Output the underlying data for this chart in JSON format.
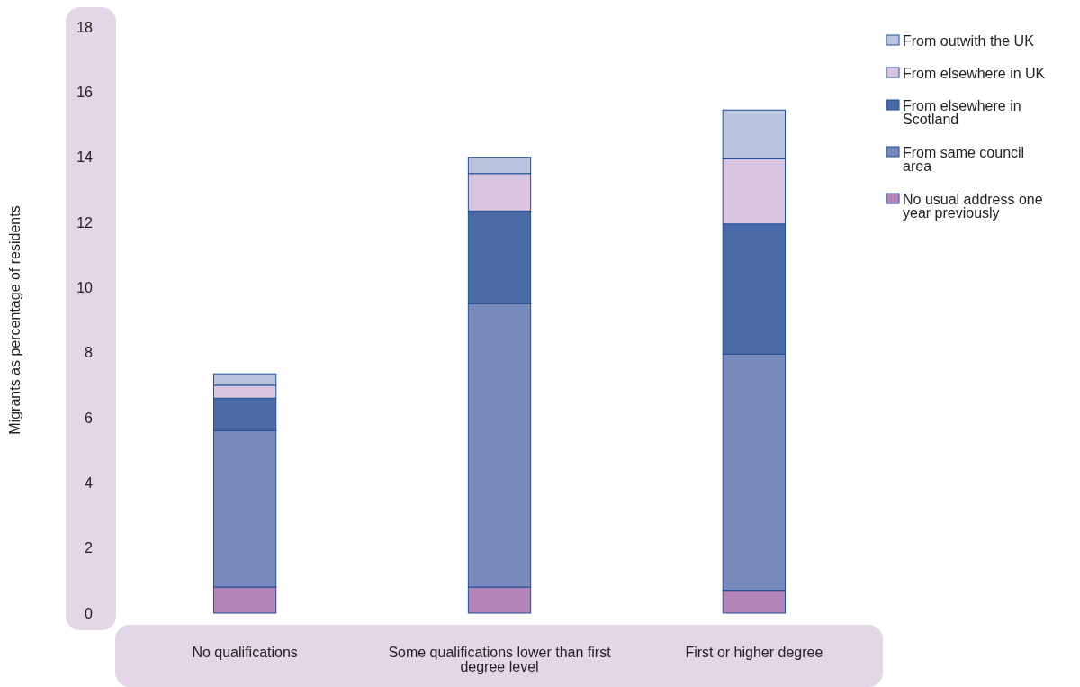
{
  "chart_data": {
    "type": "bar",
    "stacked": true,
    "ylabel": "Migrants as percentage of residents",
    "categories": [
      "No qualifications",
      "Some qualifications lower than first degree level",
      "First or higher degree"
    ],
    "series": [
      {
        "name": "No usual address one year previously",
        "color": "#b384b8",
        "values": [
          0.8,
          0.8,
          0.7
        ]
      },
      {
        "name": "From same council area",
        "color": "#7889bb",
        "values": [
          4.8,
          8.7,
          7.25
        ]
      },
      {
        "name": "From elsewhere in Scotland",
        "color": "#4a6aa8",
        "values": [
          1.0,
          2.85,
          4.0
        ]
      },
      {
        "name": "From elsewhere in UK",
        "color": "#d9c5e0",
        "values": [
          0.4,
          1.15,
          2.0
        ]
      },
      {
        "name": "From outwith the UK",
        "color": "#bac4de",
        "values": [
          0.35,
          0.5,
          1.5
        ]
      }
    ],
    "ylim": [
      0,
      18
    ],
    "yticks": [
      0,
      2,
      4,
      6,
      8,
      10,
      12,
      14,
      16,
      18
    ],
    "grid": false,
    "legend": "right"
  }
}
